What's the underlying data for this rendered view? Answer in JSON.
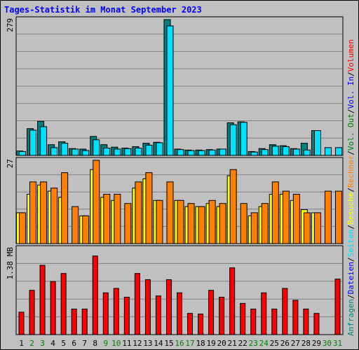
{
  "chart_data": {
    "type": "bar",
    "title": "Tages-Statistik im Monat September 2023",
    "categories": [
      "1",
      "2",
      "3",
      "4",
      "5",
      "6",
      "7",
      "8",
      "9",
      "10",
      "11",
      "12",
      "13",
      "14",
      "15",
      "16",
      "17",
      "18",
      "19",
      "20",
      "21",
      "22",
      "23",
      "24",
      "25",
      "26",
      "27",
      "28",
      "29",
      "30",
      "31"
    ],
    "weekend_days": [
      "2",
      "3",
      "9",
      "10",
      "16",
      "17",
      "23",
      "24",
      "30",
      "31"
    ],
    "colors": {
      "anfragen": "#008080",
      "dateien": "#00e0ff",
      "seiten": "#00ffff",
      "besuche": "#ffff00",
      "rechner": "#ff8000",
      "volumen": "#ff0000",
      "weekday_label": "#000000",
      "weekend_label": "#008000",
      "title": "#0000ff",
      "frame": "#000000",
      "grid": "#808080"
    },
    "panels": [
      {
        "id": "hits",
        "ymax_label": "279",
        "ymax": 279,
        "series": [
          {
            "name": "Anfragen",
            "values": [
              9,
              55,
              70,
              22,
              28,
              14,
              13,
              39,
              22,
              17,
              15,
              18,
              25,
              27,
              279,
              13,
              11,
              11,
              12,
              13,
              67,
              69,
              8,
              14,
              22,
              20,
              14,
              25,
              51,
              0,
              0
            ]
          },
          {
            "name": "Dateien",
            "values": [
              8,
              52,
              59,
              16,
              25,
              13,
              10,
              32,
              15,
              13,
              14,
              15,
              21,
              26,
              266,
              12,
              10,
              10,
              11,
              13,
              63,
              68,
              7,
              12,
              19,
              18,
              13,
              11,
              51,
              16,
              16
            ]
          }
        ]
      },
      {
        "id": "visits",
        "ymax_label": "27",
        "ymax": 27,
        "series": [
          {
            "name": "Besuche",
            "values": [
              10,
              16,
              19,
              17,
              15,
              0,
              9,
              24,
              15,
              14,
              0,
              18,
              21,
              14,
              0,
              14,
              12,
              12,
              13,
              12,
              22,
              0,
              9,
              12,
              16,
              16,
              14,
              11,
              10,
              0,
              0
            ]
          },
          {
            "name": "Rechner",
            "values": [
              10,
              20,
              20,
              18,
              23,
              12,
              9,
              27,
              16,
              16,
              13,
              20,
              23,
              14,
              20,
              14,
              13,
              12,
              14,
              13,
              24,
              13,
              10,
              13,
              20,
              17,
              16,
              10,
              10,
              17,
              17
            ]
          }
        ]
      },
      {
        "id": "volume",
        "ymax_label": "1.38 MB",
        "ymax": 1.38,
        "series": [
          {
            "name": "Volumen",
            "values": [
              0.36,
              0.71,
              1.11,
              0.85,
              0.98,
              0.41,
              0.41,
              1.26,
              0.67,
              0.74,
              0.6,
              0.98,
              0.88,
              0.62,
              0.88,
              0.67,
              0.34,
              0.33,
              0.71,
              0.6,
              1.07,
              0.5,
              0.41,
              0.67,
              0.41,
              0.74,
              0.55,
              0.41,
              0.34,
              0.0,
              0.89
            ]
          }
        ]
      }
    ],
    "right_labels": [
      {
        "text": "Anfragen",
        "color": "#008080"
      },
      {
        "text": "/",
        "color": "#000000"
      },
      {
        "text": "Dateien",
        "color": "#0000ff"
      },
      {
        "text": "/",
        "color": "#000000"
      },
      {
        "text": "Seiten",
        "color": "#00e0ff"
      },
      {
        "text": "/",
        "color": "#000000"
      },
      {
        "text": "Besuche",
        "color": "#ffff00"
      },
      {
        "text": "/",
        "color": "#000000"
      },
      {
        "text": "Rechner",
        "color": "#ff8000"
      },
      {
        "text": "/",
        "color": "#000000"
      },
      {
        "text": "Vol. Out",
        "color": "#008000"
      },
      {
        "text": "/",
        "color": "#000000"
      },
      {
        "text": "Vol. In",
        "color": "#0000ff"
      },
      {
        "text": "/",
        "color": "#000000"
      },
      {
        "text": "Volumen",
        "color": "#ff0000"
      }
    ]
  }
}
